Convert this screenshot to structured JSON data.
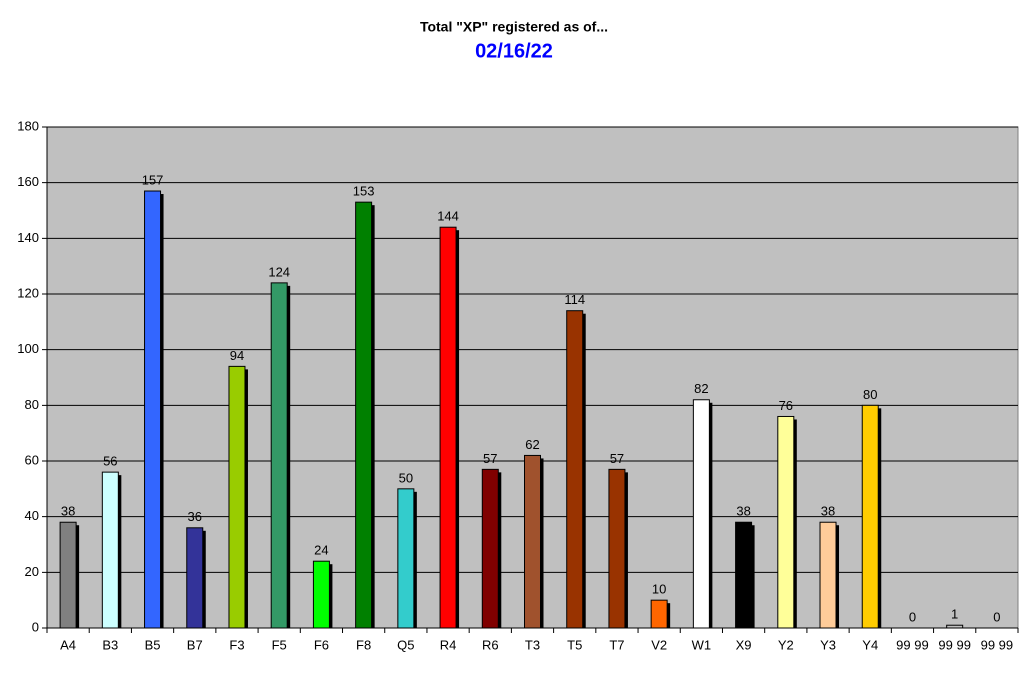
{
  "chart_data": {
    "type": "bar",
    "title": "Total \"XP\" registered as of...",
    "subtitle": "02/16/22",
    "categories": [
      "A4",
      "B3",
      "B5",
      "B7",
      "F3",
      "F5",
      "F6",
      "F8",
      "Q5",
      "R4",
      "R6",
      "T3",
      "T5",
      "T7",
      "V2",
      "W1",
      "X9",
      "Y2",
      "Y3",
      "Y4",
      "99 99",
      "99 99",
      "99 99"
    ],
    "values": [
      38,
      56,
      157,
      36,
      94,
      124,
      24,
      153,
      50,
      144,
      57,
      62,
      114,
      57,
      10,
      82,
      38,
      76,
      38,
      80,
      0,
      1,
      0
    ],
    "colors": [
      "#808080",
      "#ccffff",
      "#3366ff",
      "#333399",
      "#99cc00",
      "#339966",
      "#00ff00",
      "#008000",
      "#33cccc",
      "#ff0000",
      "#800000",
      "#a0522d",
      "#993300",
      "#993300",
      "#ff6600",
      "#ffffff",
      "#000000",
      "#ffff99",
      "#ffcc99",
      "#ffcc00",
      "#c0c0c0",
      "#c0c0c0",
      "#c0c0c0"
    ],
    "ylim": [
      0,
      180
    ],
    "yticks": [
      0,
      20,
      40,
      60,
      80,
      100,
      120,
      140,
      160,
      180
    ],
    "grid": true
  }
}
